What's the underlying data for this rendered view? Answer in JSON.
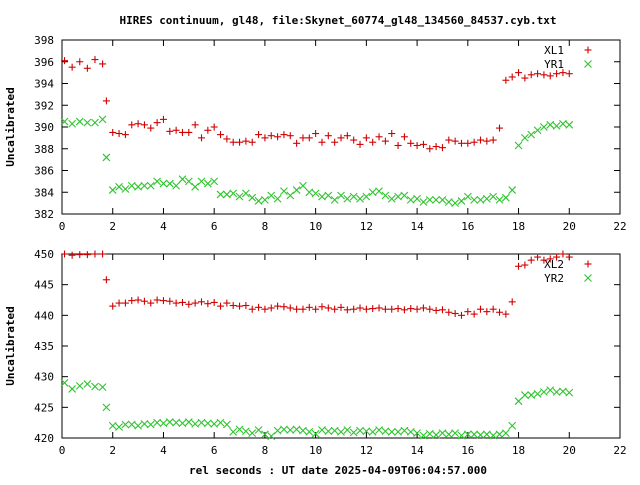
{
  "title": "HIRES continuum, gl48, file:Skynet_60774_gl48_134560_84537.cyb.txt",
  "xlabel": "rel seconds : UT date 2025-04-09T06:04:57.000",
  "colors": {
    "red": "#d00000",
    "green": "#2ec42e"
  },
  "chart_data": [
    {
      "type": "scatter",
      "ylabel": "Uncalibrated",
      "xlim": [
        0,
        22
      ],
      "ylim": [
        382,
        398
      ],
      "xticks": [
        "0",
        "2",
        "4",
        "6",
        "8",
        "10",
        "12",
        "14",
        "16",
        "18",
        "20",
        "22"
      ],
      "yticks": [
        "382",
        "384",
        "386",
        "388",
        "390",
        "392",
        "394",
        "396",
        "398"
      ],
      "legend_position": "top-right",
      "series": [
        {
          "name": "XL1",
          "marker": "plus",
          "color": "#d00000",
          "x": [
            0.1,
            0.4,
            0.7,
            1.0,
            1.3,
            1.6,
            1.75,
            2.0,
            2.25,
            2.5,
            2.75,
            3.0,
            3.25,
            3.5,
            3.75,
            4.0,
            4.25,
            4.5,
            4.75,
            5.0,
            5.25,
            5.5,
            5.75,
            6.0,
            6.25,
            6.5,
            6.75,
            7.0,
            7.25,
            7.5,
            7.75,
            8.0,
            8.25,
            8.5,
            8.75,
            9.0,
            9.25,
            9.5,
            9.75,
            10.0,
            10.25,
            10.5,
            10.75,
            11.0,
            11.25,
            11.5,
            11.75,
            12.0,
            12.25,
            12.5,
            12.75,
            13.0,
            13.25,
            13.5,
            13.75,
            14.0,
            14.25,
            14.5,
            14.75,
            15.0,
            15.25,
            15.5,
            15.75,
            16.0,
            16.25,
            16.5,
            16.75,
            17.0,
            17.25,
            17.5,
            17.75,
            18.0,
            18.25,
            18.5,
            18.75,
            19.0,
            19.25,
            19.5,
            19.75,
            20.0
          ],
          "y": [
            396.1,
            395.5,
            396.0,
            395.4,
            396.2,
            395.8,
            392.4,
            389.5,
            389.4,
            389.3,
            390.2,
            390.3,
            390.2,
            389.9,
            390.4,
            390.7,
            389.6,
            389.7,
            389.5,
            389.5,
            390.2,
            389.0,
            389.7,
            390.0,
            389.3,
            388.9,
            388.6,
            388.6,
            388.7,
            388.6,
            389.3,
            389.0,
            389.2,
            389.1,
            389.3,
            389.2,
            388.5,
            389.0,
            389.0,
            389.4,
            388.6,
            389.2,
            388.6,
            389.0,
            389.2,
            388.8,
            388.4,
            389.0,
            388.6,
            389.1,
            388.7,
            389.4,
            388.3,
            389.1,
            388.5,
            388.3,
            388.4,
            388.0,
            388.2,
            388.1,
            388.8,
            388.7,
            388.5,
            388.5,
            388.6,
            388.8,
            388.7,
            388.8,
            389.9,
            394.3,
            394.6,
            395.0,
            394.5,
            394.8,
            394.9,
            394.8,
            394.7,
            394.9,
            395.0,
            394.9
          ]
        },
        {
          "name": "YR1",
          "marker": "cross",
          "color": "#2ec42e",
          "x": [
            0.1,
            0.4,
            0.7,
            1.0,
            1.3,
            1.6,
            1.75,
            2.0,
            2.25,
            2.5,
            2.75,
            3.0,
            3.25,
            3.5,
            3.75,
            4.0,
            4.25,
            4.5,
            4.75,
            5.0,
            5.25,
            5.5,
            5.75,
            6.0,
            6.25,
            6.5,
            6.75,
            7.0,
            7.25,
            7.5,
            7.75,
            8.0,
            8.25,
            8.5,
            8.75,
            9.0,
            9.25,
            9.5,
            9.75,
            10.0,
            10.25,
            10.5,
            10.75,
            11.0,
            11.25,
            11.5,
            11.75,
            12.0,
            12.25,
            12.5,
            12.75,
            13.0,
            13.25,
            13.5,
            13.75,
            14.0,
            14.25,
            14.5,
            14.75,
            15.0,
            15.25,
            15.5,
            15.75,
            16.0,
            16.25,
            16.5,
            16.75,
            17.0,
            17.25,
            17.5,
            17.75,
            18.0,
            18.25,
            18.5,
            18.75,
            19.0,
            19.25,
            19.5,
            19.75,
            20.0
          ],
          "y": [
            390.5,
            390.3,
            390.5,
            390.4,
            390.4,
            390.7,
            387.2,
            384.2,
            384.5,
            384.3,
            384.6,
            384.5,
            384.6,
            384.6,
            385.0,
            384.8,
            384.8,
            384.6,
            385.2,
            385.0,
            384.5,
            385.0,
            384.8,
            385.0,
            383.8,
            383.8,
            383.9,
            383.6,
            383.9,
            383.5,
            383.2,
            383.3,
            383.7,
            383.4,
            384.1,
            383.7,
            384.2,
            384.6,
            384.0,
            383.9,
            383.6,
            383.7,
            383.3,
            383.7,
            383.4,
            383.6,
            383.4,
            383.6,
            384.0,
            384.1,
            383.7,
            383.4,
            383.6,
            383.7,
            383.3,
            383.4,
            383.1,
            383.3,
            383.3,
            383.3,
            383.1,
            383.0,
            383.2,
            383.6,
            383.3,
            383.3,
            383.4,
            383.6,
            383.3,
            383.5,
            384.2,
            388.3,
            389.0,
            389.3,
            389.7,
            390.0,
            390.2,
            390.1,
            390.3,
            390.2
          ]
        }
      ]
    },
    {
      "type": "scatter",
      "ylabel": "Uncalibrated",
      "xlim": [
        0,
        22
      ],
      "ylim": [
        420,
        450
      ],
      "xticks": [
        "0",
        "2",
        "4",
        "6",
        "8",
        "10",
        "12",
        "14",
        "16",
        "18",
        "20",
        "22"
      ],
      "yticks": [
        "420",
        "425",
        "430",
        "435",
        "440",
        "445",
        "450"
      ],
      "legend_position": "top-right",
      "series": [
        {
          "name": "XL2",
          "marker": "plus",
          "color": "#d00000",
          "x": [
            0.1,
            0.4,
            0.7,
            1.0,
            1.3,
            1.6,
            1.75,
            2.0,
            2.25,
            2.5,
            2.75,
            3.0,
            3.25,
            3.5,
            3.75,
            4.0,
            4.25,
            4.5,
            4.75,
            5.0,
            5.25,
            5.5,
            5.75,
            6.0,
            6.25,
            6.5,
            6.75,
            7.0,
            7.25,
            7.5,
            7.75,
            8.0,
            8.25,
            8.5,
            8.75,
            9.0,
            9.25,
            9.5,
            9.75,
            10.0,
            10.25,
            10.5,
            10.75,
            11.0,
            11.25,
            11.5,
            11.75,
            12.0,
            12.25,
            12.5,
            12.75,
            13.0,
            13.25,
            13.5,
            13.75,
            14.0,
            14.25,
            14.5,
            14.75,
            15.0,
            15.25,
            15.5,
            15.75,
            16.0,
            16.25,
            16.5,
            16.75,
            17.0,
            17.25,
            17.5,
            17.75,
            18.0,
            18.25,
            18.5,
            18.75,
            19.0,
            19.25,
            19.5,
            19.75,
            20.0
          ],
          "y": [
            450.0,
            449.8,
            449.9,
            449.9,
            450.0,
            450.0,
            445.8,
            441.5,
            442.0,
            442.0,
            442.4,
            442.5,
            442.3,
            442.0,
            442.5,
            442.4,
            442.3,
            442.0,
            442.1,
            441.8,
            442.0,
            442.2,
            441.9,
            442.1,
            441.5,
            442.0,
            441.6,
            441.5,
            441.6,
            441.0,
            441.3,
            441.0,
            441.2,
            441.5,
            441.4,
            441.2,
            441.0,
            441.0,
            441.3,
            441.0,
            441.4,
            441.2,
            441.0,
            441.3,
            440.9,
            441.0,
            441.2,
            441.0,
            441.1,
            441.2,
            441.0,
            441.0,
            441.1,
            440.9,
            441.1,
            441.0,
            441.2,
            441.0,
            440.8,
            440.9,
            440.5,
            440.3,
            440.0,
            440.6,
            440.2,
            441.0,
            440.6,
            441.0,
            440.5,
            440.2,
            442.2,
            448.0,
            448.2,
            449.0,
            449.5,
            449.0,
            449.2,
            449.5,
            450.0,
            449.5
          ],
          "note": ""
        },
        {
          "name": "YR2",
          "marker": "cross",
          "color": "#2ec42e",
          "x": [
            0.1,
            0.4,
            0.7,
            1.0,
            1.3,
            1.6,
            1.75,
            2.0,
            2.25,
            2.5,
            2.75,
            3.0,
            3.25,
            3.5,
            3.75,
            4.0,
            4.25,
            4.5,
            4.75,
            5.0,
            5.25,
            5.5,
            5.75,
            6.0,
            6.25,
            6.5,
            6.75,
            7.0,
            7.25,
            7.5,
            7.75,
            8.0,
            8.25,
            8.5,
            8.75,
            9.0,
            9.25,
            9.5,
            9.75,
            10.0,
            10.25,
            10.5,
            10.75,
            11.0,
            11.25,
            11.5,
            11.75,
            12.0,
            12.25,
            12.5,
            12.75,
            13.0,
            13.25,
            13.5,
            13.75,
            14.0,
            14.25,
            14.5,
            14.75,
            15.0,
            15.25,
            15.5,
            15.75,
            16.0,
            16.25,
            16.5,
            16.75,
            17.0,
            17.25,
            17.5,
            17.75,
            18.0,
            18.25,
            18.5,
            18.75,
            19.0,
            19.25,
            19.5,
            19.75,
            20.0
          ],
          "y": [
            429.0,
            428.0,
            428.5,
            428.8,
            428.4,
            428.3,
            425.0,
            422.0,
            421.8,
            422.2,
            422.2,
            422.0,
            422.3,
            422.2,
            422.5,
            422.4,
            422.6,
            422.5,
            422.4,
            422.6,
            422.3,
            422.5,
            422.4,
            422.3,
            422.5,
            422.2,
            421.0,
            421.4,
            421.1,
            420.8,
            421.3,
            420.6,
            420.3,
            421.2,
            421.4,
            421.3,
            421.4,
            421.2,
            421.0,
            420.7,
            421.3,
            421.1,
            421.2,
            421.0,
            421.3,
            420.9,
            421.2,
            421.1,
            421.0,
            421.3,
            421.1,
            421.0,
            421.0,
            421.2,
            421.0,
            420.8,
            420.4,
            420.7,
            420.5,
            420.8,
            420.6,
            420.8,
            420.4,
            420.6,
            420.6,
            420.5,
            420.6,
            420.4,
            420.6,
            420.8,
            422.0,
            426.0,
            427.0,
            427.0,
            427.2,
            427.5,
            427.8,
            427.5,
            427.6,
            427.4
          ]
        }
      ]
    }
  ]
}
